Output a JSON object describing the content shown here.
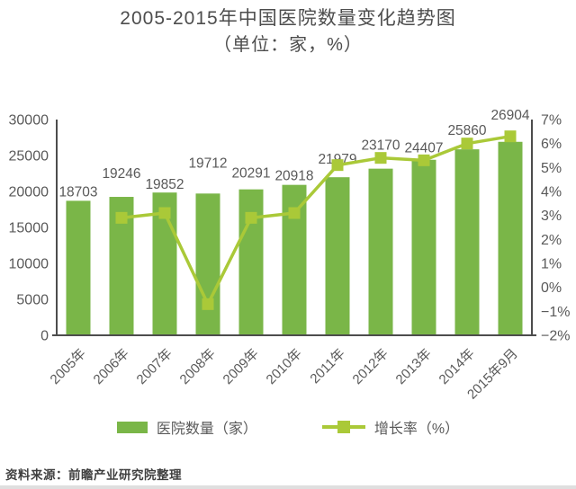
{
  "title": "2005-2015年中国医院数量变化趋势图",
  "subtitle": "（单位：家，%）",
  "source": "资料来源：前瞻产业研究院整理",
  "legend": {
    "bars_label": "医院数量（家）",
    "line_label": "增长率（%）"
  },
  "colors": {
    "bar": "#7ab648",
    "line": "#aac938",
    "text": "#595959",
    "axis": "#4d4d4d",
    "title_text": "#4d4d4d"
  },
  "chart_data": {
    "type": "bar",
    "subtype": "bar+line combo, dual axis",
    "title": "2005-2015年中国医院数量变化趋势图（单位：家，%）",
    "categories": [
      "2005年",
      "2006年",
      "2007年",
      "2008年",
      "2009年",
      "2010年",
      "2011年",
      "2012年",
      "2013年",
      "2014年",
      "2015年9月"
    ],
    "series": [
      {
        "name": "医院数量（家）",
        "type": "bar",
        "axis": "left",
        "values": [
          18703,
          19246,
          19852,
          19712,
          20291,
          20918,
          21979,
          23170,
          24407,
          25860,
          26904
        ]
      },
      {
        "name": "增长率（%）",
        "type": "line",
        "axis": "right",
        "values": [
          null,
          2.9,
          3.1,
          -0.7,
          2.9,
          3.1,
          5.1,
          5.4,
          5.3,
          6.0,
          6.3
        ]
      }
    ],
    "left_axis": {
      "min": 0,
      "max": 30000,
      "step": 5000,
      "ticks": [
        "0",
        "5000",
        "10000",
        "15000",
        "20000",
        "25000",
        "30000"
      ]
    },
    "right_axis": {
      "min": -2,
      "max": 7,
      "step": 1,
      "ticks": [
        "−2%",
        "−1%",
        "0%",
        "1%",
        "2%",
        "3%",
        "4%",
        "5%",
        "6%",
        "7%"
      ]
    },
    "grid": false,
    "legend_position": "bottom",
    "bar_value_labels_shown": true,
    "line_value_labels_shown": false
  }
}
